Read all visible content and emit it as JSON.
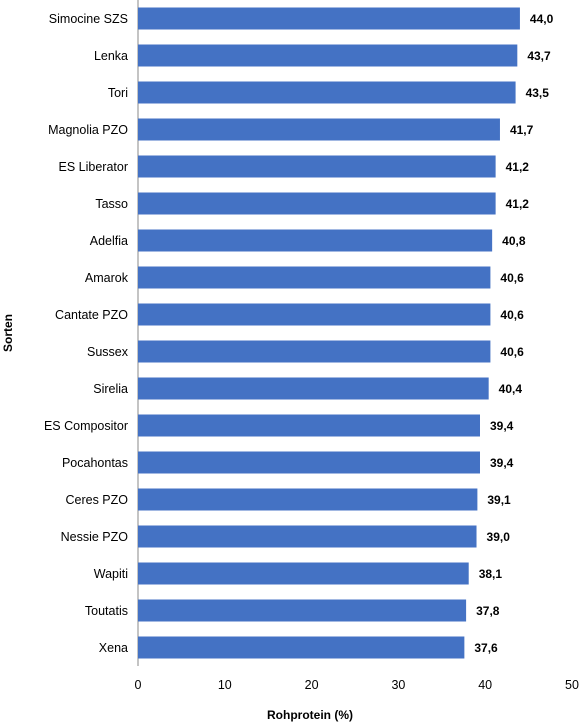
{
  "chart_data": {
    "type": "bar",
    "orientation": "horizontal",
    "categories": [
      "Simocine SZS",
      "Lenka",
      "Tori",
      "Magnolia PZO",
      "ES Liberator",
      "Tasso",
      "Adelfia",
      "Amarok",
      "Cantate PZO",
      "Sussex",
      "Sirelia",
      "ES Compositor",
      "Pocahontas",
      "Ceres PZO",
      "Nessie PZO",
      "Wapiti",
      "Toutatis",
      "Xena"
    ],
    "values": [
      44.0,
      43.7,
      43.5,
      41.7,
      41.2,
      41.2,
      40.8,
      40.6,
      40.6,
      40.6,
      40.4,
      39.4,
      39.4,
      39.1,
      39.0,
      38.1,
      37.8,
      37.6
    ],
    "value_labels": [
      "44,0",
      "43,7",
      "43,5",
      "41,7",
      "41,2",
      "41,2",
      "40,8",
      "40,6",
      "40,6",
      "40,6",
      "40,4",
      "39,4",
      "39,4",
      "39,1",
      "39,0",
      "38,1",
      "37,8",
      "37,6"
    ],
    "xlabel": "Rohprotein (%)",
    "ylabel": "Sorten",
    "xlim": [
      0,
      50
    ],
    "xticks": [
      0,
      10,
      20,
      30,
      40,
      50
    ],
    "grid": false,
    "bar_color": "#4472C4"
  }
}
